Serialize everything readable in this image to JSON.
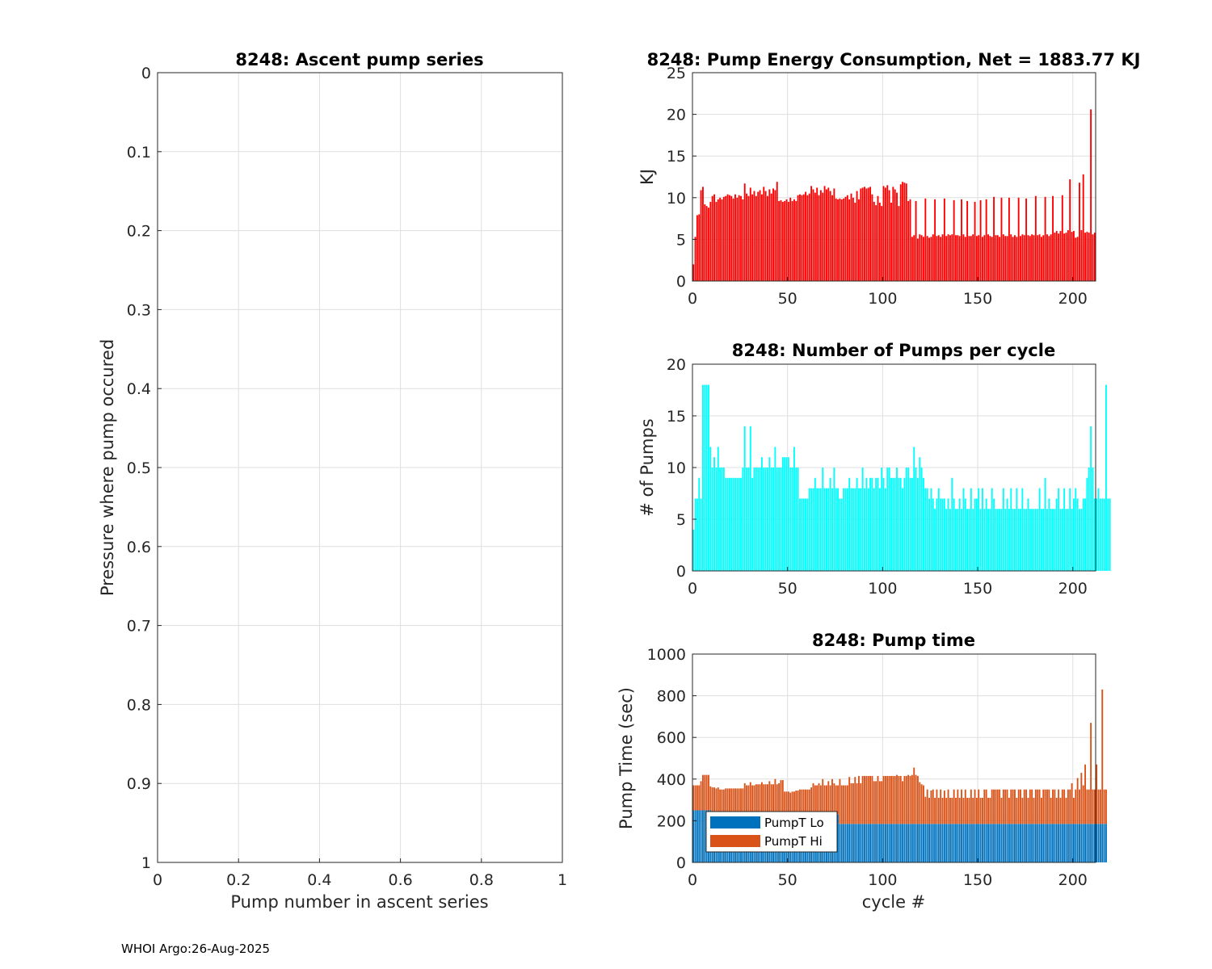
{
  "footer": "WHOI Argo:26-Aug-2025",
  "colors": {
    "energy_bar": "#ff0000",
    "pumps_bar": "#00ffff",
    "pump_lo": "#0072bd",
    "pump_hi": "#d95319",
    "grid": "#dfdfdf",
    "axis": "#262626"
  },
  "chart_data": [
    {
      "type": "line",
      "title": "8248: Ascent pump series",
      "xlabel": "Pump number in ascent series",
      "ylabel": "Pressure where pump occured",
      "xlim": [
        0,
        1
      ],
      "ylim": [
        0,
        1
      ],
      "y_reversed": true,
      "xticks": [
        0,
        0.2,
        0.4,
        0.6,
        0.8,
        1
      ],
      "xticklabels": [
        "0",
        "0.2",
        "0.4",
        "0.6",
        "0.8",
        "1"
      ],
      "yticks": [
        0,
        0.1,
        0.2,
        0.3,
        0.4,
        0.5,
        0.6,
        0.7,
        0.8,
        0.9,
        1
      ],
      "yticklabels": [
        "0",
        "0.1",
        "0.2",
        "0.3",
        "0.4",
        "0.5",
        "0.6",
        "0.7",
        "0.8",
        "0.9",
        "1"
      ],
      "grid": true,
      "series": []
    },
    {
      "type": "bar",
      "title": "8248: Pump Energy Consumption,  Net = 1883.77 KJ",
      "xlabel": "",
      "ylabel": "KJ",
      "xlim": [
        0,
        212
      ],
      "ylim": [
        0,
        25
      ],
      "xticks": [
        0,
        50,
        100,
        150,
        200
      ],
      "xticklabels": [
        "0",
        "50",
        "100",
        "150",
        "200"
      ],
      "yticks": [
        0,
        5,
        10,
        15,
        20,
        25
      ],
      "yticklabels": [
        "0",
        "5",
        "10",
        "15",
        "20",
        "25"
      ],
      "grid": true,
      "values": [
        2.0,
        5.3,
        7.9,
        8.0,
        10.9,
        11.3,
        9.2,
        9.0,
        8.8,
        9.5,
        10.2,
        10.4,
        9.5,
        9.8,
        10.0,
        9.8,
        10.1,
        10.2,
        10.4,
        10.3,
        10.2,
        9.9,
        10.4,
        10.0,
        10.3,
        10.2,
        9.8,
        11.7,
        10.5,
        10.2,
        11.2,
        10.4,
        10.8,
        10.2,
        10.7,
        10.9,
        10.4,
        11.3,
        10.8,
        10.2,
        11.0,
        10.5,
        11.1,
        10.9,
        11.9,
        9.6,
        9.7,
        9.5,
        9.6,
        9.8,
        9.5,
        10.0,
        9.6,
        9.8,
        9.6,
        10.3,
        10.4,
        10.3,
        10.4,
        10.7,
        10.3,
        10.5,
        11.4,
        11.0,
        10.6,
        11.2,
        10.3,
        10.9,
        10.6,
        11.4,
        11.0,
        11.2,
        10.8,
        10.3,
        11.1,
        9.9,
        9.8,
        9.9,
        9.8,
        9.9,
        10.1,
        10.3,
        9.8,
        10.5,
        10.0,
        9.4,
        10.8,
        9.8,
        11.1,
        11.2,
        11.3,
        11.1,
        11.2,
        11.3,
        10.4,
        9.5,
        9.1,
        10.2,
        9.4,
        9.0,
        11.4,
        11.2,
        11.5,
        10.9,
        9.4,
        11.3,
        11.0,
        10.6,
        9.0,
        11.6,
        11.9,
        11.8,
        11.7,
        9.6,
        9.8,
        5.3,
        5.5,
        9.6,
        5.1,
        5.6,
        5.5,
        5.3,
        9.9,
        5.4,
        5.2,
        5.3,
        5.6,
        9.8,
        5.4,
        5.5,
        5.3,
        5.6,
        9.9,
        5.4,
        5.6,
        5.5,
        5.6,
        9.7,
        5.5,
        5.5,
        5.4,
        9.8,
        5.6,
        5.3,
        9.6,
        5.4,
        5.4,
        5.6,
        9.5,
        5.4,
        5.5,
        9.7,
        5.3,
        5.5,
        9.8,
        5.6,
        5.4,
        5.3,
        10.1,
        5.5,
        5.5,
        5.3,
        10.0,
        5.6,
        5.4,
        5.4,
        10.0,
        5.6,
        5.3,
        5.5,
        5.3,
        10.0,
        5.4,
        5.6,
        5.5,
        9.9,
        5.5,
        5.4,
        5.6,
        5.5,
        10.2,
        5.5,
        5.6,
        5.3,
        5.5,
        10.1,
        5.6,
        5.4,
        5.6,
        10.2,
        5.8,
        6.0,
        5.7,
        6.0,
        10.3,
        5.7,
        5.8,
        6.1,
        12.2,
        5.9,
        6.0,
        5.2,
        5.3,
        11.8,
        6.1,
        12.8,
        5.8,
        5.9,
        5.8,
        20.6,
        5.6,
        5.8
      ]
    },
    {
      "type": "bar",
      "title": "8248: Number of Pumps per cycle",
      "xlabel": "",
      "ylabel": "# of Pumps",
      "xlim": [
        0,
        212
      ],
      "ylim": [
        0,
        20
      ],
      "xticks": [
        0,
        50,
        100,
        150,
        200
      ],
      "xticklabels": [
        "0",
        "50",
        "100",
        "150",
        "200"
      ],
      "yticks": [
        0,
        5,
        10,
        15,
        20
      ],
      "yticklabels": [
        "0",
        "5",
        "10",
        "15",
        "20"
      ],
      "grid": true,
      "values": [
        4,
        7,
        7,
        9,
        7,
        18,
        18,
        18,
        18,
        12,
        10,
        11,
        10,
        12,
        10,
        10,
        10,
        9,
        9,
        9,
        9,
        9,
        9,
        9,
        9,
        9,
        10,
        14,
        10,
        10,
        14,
        9,
        10,
        10,
        10,
        10,
        11,
        10,
        10,
        10,
        11,
        10,
        10,
        12,
        10,
        10,
        10,
        11,
        11,
        11,
        11,
        10,
        10,
        12,
        10,
        10,
        7,
        7,
        7,
        7,
        7,
        8,
        8,
        8,
        9,
        8,
        8,
        8,
        10,
        8,
        8,
        8,
        9,
        8,
        10,
        8,
        8,
        7,
        7,
        8,
        8,
        8,
        9,
        8,
        8,
        8,
        9,
        8,
        8,
        10,
        8,
        9,
        8,
        9,
        9,
        8,
        9,
        9,
        8,
        10,
        9,
        8,
        10,
        10,
        9,
        9,
        9,
        10,
        9,
        9,
        8,
        9,
        10,
        10,
        9,
        9,
        12,
        10,
        9,
        11,
        10,
        9,
        8,
        8,
        7,
        8,
        7,
        6,
        7,
        8,
        7,
        7,
        7,
        6,
        7,
        6,
        9,
        7,
        6,
        6,
        7,
        6,
        8,
        7,
        6,
        6,
        8,
        6,
        7,
        7,
        8,
        6,
        8,
        6,
        7,
        6,
        6,
        8,
        7,
        6,
        6,
        6,
        6,
        8,
        6,
        7,
        6,
        8,
        6,
        6,
        8,
        6,
        6,
        8,
        6,
        6,
        7,
        6,
        6,
        6,
        6,
        6,
        8,
        6,
        6,
        9,
        6,
        7,
        6,
        6,
        6,
        7,
        8,
        6,
        6,
        8,
        6,
        6,
        8,
        6,
        7,
        8,
        7,
        6,
        6,
        7,
        7,
        9,
        10,
        14,
        10,
        7,
        7,
        8,
        7,
        7,
        7,
        18,
        7,
        7
      ]
    },
    {
      "type": "bar",
      "stacked": true,
      "title": "8248: Pump time",
      "xlabel": "cycle #",
      "ylabel": "Pump Time (sec)",
      "xlim": [
        0,
        212
      ],
      "ylim": [
        0,
        1000
      ],
      "xticks": [
        0,
        50,
        100,
        150,
        200
      ],
      "xticklabels": [
        "0",
        "50",
        "100",
        "150",
        "200"
      ],
      "yticks": [
        0,
        200,
        400,
        600,
        800,
        1000
      ],
      "yticklabels": [
        "0",
        "200",
        "400",
        "600",
        "800",
        "1000"
      ],
      "grid": true,
      "legend": [
        "PumpT Lo",
        "PumpT Hi"
      ],
      "legend_location": "bottom-left",
      "series": [
        {
          "name": "PumpT Lo",
          "lo_segments": [
            [
              0,
              10,
              250
            ],
            [
              10,
              77,
              230
            ],
            [
              77,
              212,
              185
            ]
          ]
        },
        {
          "name": "PumpT Hi",
          "totals": [
            370,
            370,
            370,
            370,
            390,
            420,
            420,
            420,
            420,
            365,
            360,
            360,
            355,
            360,
            350,
            350,
            350,
            355,
            355,
            355,
            355,
            355,
            355,
            355,
            355,
            355,
            355,
            380,
            370,
            370,
            385,
            370,
            370,
            375,
            375,
            375,
            385,
            375,
            375,
            375,
            390,
            375,
            375,
            400,
            375,
            380,
            395,
            395,
            340,
            340,
            340,
            335,
            340,
            340,
            345,
            345,
            350,
            350,
            350,
            350,
            350,
            350,
            360,
            380,
            370,
            370,
            380,
            370,
            400,
            370,
            370,
            390,
            370,
            400,
            380,
            370,
            370,
            400,
            370,
            370,
            370,
            370,
            410,
            380,
            380,
            410,
            380,
            415,
            380,
            415,
            415,
            415,
            415,
            415,
            415,
            390,
            390,
            415,
            390,
            390,
            415,
            415,
            415,
            415,
            415,
            415,
            415,
            420,
            415,
            415,
            390,
            415,
            415,
            420,
            415,
            420,
            455,
            420,
            415,
            385,
            375,
            370,
            315,
            350,
            310,
            345,
            350,
            310,
            350,
            310,
            350,
            310,
            345,
            310,
            350,
            310,
            310,
            350,
            310,
            350,
            310,
            350,
            310,
            350,
            310,
            310,
            350,
            310,
            350,
            310,
            350,
            310,
            310,
            350,
            350,
            310,
            310,
            350,
            350,
            350,
            350,
            350,
            310,
            350,
            350,
            350,
            310,
            350,
            350,
            350,
            310,
            350,
            350,
            310,
            350,
            350,
            310,
            350,
            350,
            310,
            350,
            350,
            350,
            310,
            350,
            350,
            350,
            350,
            310,
            350,
            350,
            310,
            350,
            310,
            350,
            350,
            310,
            350,
            350,
            380,
            310,
            350,
            405,
            350,
            430,
            370,
            470,
            350,
            350,
            670,
            350,
            350,
            470,
            350,
            350,
            830,
            350,
            350
          ]
        }
      ]
    }
  ]
}
